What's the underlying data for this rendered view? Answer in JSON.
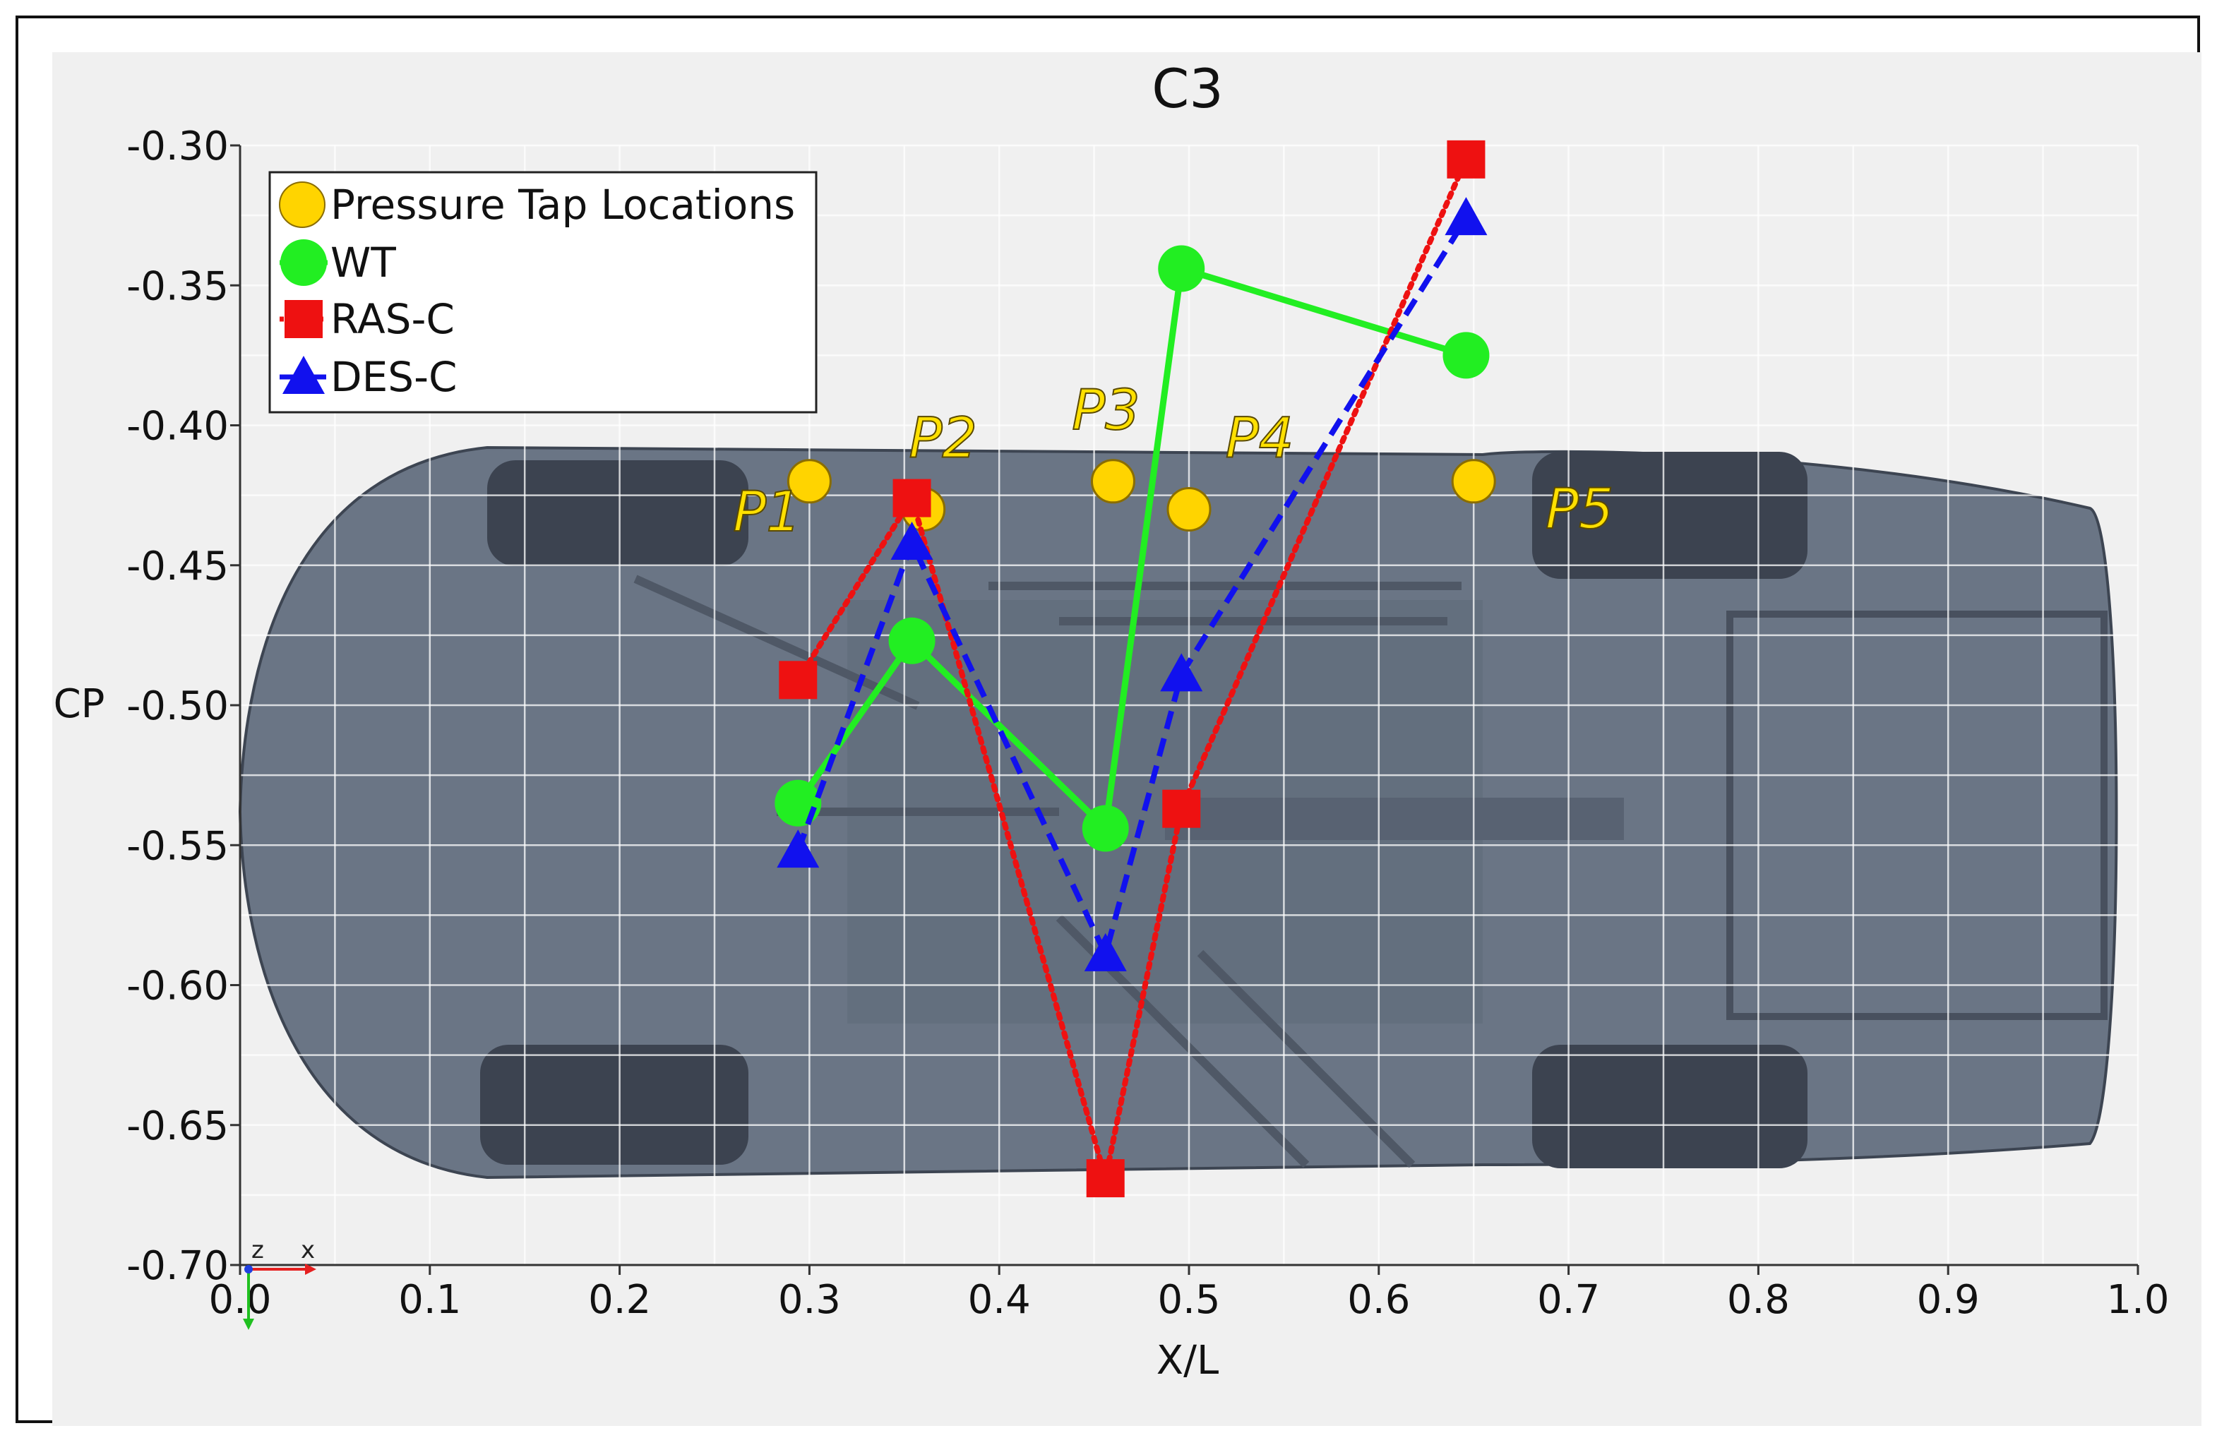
{
  "chart_data": {
    "type": "line",
    "title": "C3",
    "xlabel": "X/L",
    "ylabel": "CP",
    "xlim": [
      0.0,
      1.0
    ],
    "ylim": [
      -0.7,
      -0.3
    ],
    "xticks": [
      "0.0",
      "0.1",
      "0.2",
      "0.3",
      "0.4",
      "0.5",
      "0.6",
      "0.7",
      "0.8",
      "0.9",
      "1.0"
    ],
    "yticks": [
      "-0.30",
      "-0.35",
      "-0.40",
      "-0.45",
      "-0.50",
      "-0.55",
      "-0.60",
      "-0.65",
      "-0.70"
    ],
    "grid": true,
    "legend_position": "top-left",
    "legend": [
      "Pressure Tap Locations",
      "WT",
      "RAS-C",
      "DES-C"
    ],
    "pressure_taps": [
      {
        "label": "P1",
        "x": 0.3,
        "y": -0.42
      },
      {
        "label": "P2",
        "x": 0.36,
        "y": -0.43
      },
      {
        "label": "P3",
        "x": 0.46,
        "y": -0.42
      },
      {
        "label": "P4",
        "x": 0.5,
        "y": -0.43
      },
      {
        "label": "P5",
        "x": 0.65,
        "y": -0.42
      }
    ],
    "series": [
      {
        "name": "WT",
        "color": "#22ee22",
        "marker": "circle",
        "line": "solid",
        "x": [
          0.294,
          0.354,
          0.456,
          0.496,
          0.646
        ],
        "y": [
          -0.535,
          -0.477,
          -0.544,
          -0.344,
          -0.375
        ]
      },
      {
        "name": "RAS-C",
        "color": "#ee1111",
        "marker": "square",
        "line": "dotted",
        "x": [
          0.294,
          0.354,
          0.456,
          0.496,
          0.646
        ],
        "y": [
          -0.491,
          -0.426,
          -0.669,
          -0.537,
          -0.305
        ]
      },
      {
        "name": "DES-C",
        "color": "#1111ee",
        "marker": "triangle",
        "line": "dashed",
        "x": [
          0.294,
          0.354,
          0.456,
          0.496,
          0.646
        ],
        "y": [
          -0.552,
          -0.442,
          -0.589,
          -0.489,
          -0.326
        ]
      }
    ],
    "triad": {
      "z": "z",
      "x": "x"
    },
    "colors": {
      "background": "#f0f0f0",
      "car": "#6a7585",
      "grid": "#ffffff",
      "tap": "#ffd400"
    }
  }
}
